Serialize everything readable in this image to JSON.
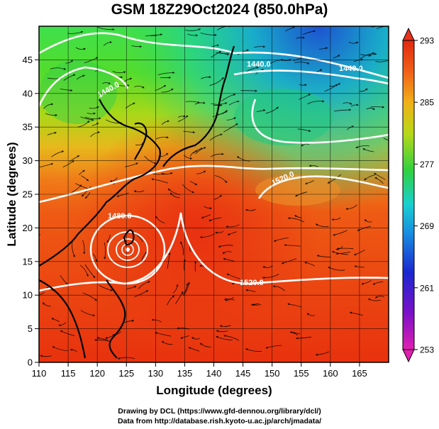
{
  "title": "GSM 18Z29Oct2024 (850.0hPa)",
  "x_axis": {
    "label": "Longitude (degrees)",
    "ticks": [
      "110",
      "115",
      "120",
      "125",
      "130",
      "135",
      "140",
      "145",
      "150",
      "155",
      "160",
      "165"
    ]
  },
  "y_axis": {
    "label": "Latitude  (degrees)",
    "ticks": [
      "0",
      "5",
      "10",
      "15",
      "20",
      "25",
      "30",
      "35",
      "40",
      "45"
    ]
  },
  "colorbar": {
    "ticks": [
      "253",
      "261",
      "269",
      "277",
      "285",
      "293"
    ]
  },
  "contour_labels": [
    "1440.0",
    "1440.0",
    "1440.0",
    "1480.0",
    "1520.0",
    "1520.0"
  ],
  "credits": {
    "line1": "Drawing by DCL (https://www.gfd-dennou.org/library/dcl/)",
    "line2": "Data from http://database.rish.kyoto-u.ac.jp/arch/jmadata/"
  },
  "colors": {
    "warm": "#e83a12",
    "cool": "#10b8c8",
    "cold": "#1844d8",
    "min": "#e020b0",
    "contour": "#ffffff"
  }
}
